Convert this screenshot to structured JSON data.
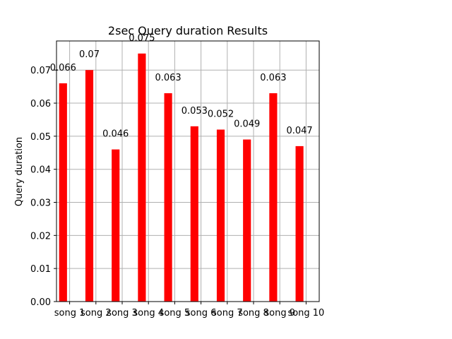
{
  "chart_data": {
    "type": "bar",
    "title": "2sec Query duration Results",
    "xlabel": "",
    "ylabel": "Query duration",
    "categories": [
      "song 1",
      "song 2",
      "song 3",
      "song 4",
      "song 5",
      "song 6",
      "song 7",
      "song 8",
      "song 9",
      "song 10"
    ],
    "values": [
      0.066,
      0.07,
      0.046,
      0.075,
      0.063,
      0.053,
      0.052,
      0.049,
      0.063,
      0.047
    ],
    "value_labels": [
      "0.066",
      "0.07",
      "0.046",
      "0.075",
      "0.063",
      "0.053",
      "0.052",
      "0.049",
      "0.063",
      "0.047"
    ],
    "ylim": [
      0,
      0.0788
    ],
    "yticks": [
      0.0,
      0.01,
      0.02,
      0.03,
      0.04,
      0.05,
      0.06,
      0.07
    ],
    "ytick_labels": [
      "0.00",
      "0.01",
      "0.02",
      "0.03",
      "0.04",
      "0.05",
      "0.06",
      "0.07"
    ],
    "grid": true,
    "bar_color": "#ff0000",
    "grid_color": "#b0b0b0"
  }
}
